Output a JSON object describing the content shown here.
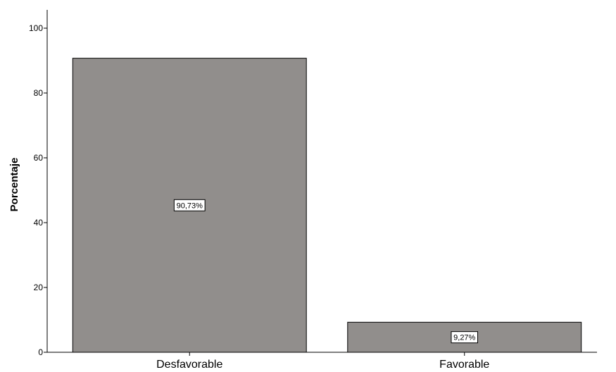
{
  "chart_data": {
    "type": "bar",
    "title": "",
    "xlabel": "",
    "ylabel": "Porcentaje",
    "categories": [
      "Desfavorable",
      "Favorable"
    ],
    "values": [
      90.73,
      9.27
    ],
    "data_labels": [
      "90,73%",
      "9,27%"
    ],
    "ylim": [
      0,
      100
    ],
    "yticks": [
      "0",
      "20",
      "40",
      "60",
      "80",
      "100"
    ],
    "grid": false,
    "bar_color": "#918e8c",
    "bar_stroke": "#000000"
  }
}
